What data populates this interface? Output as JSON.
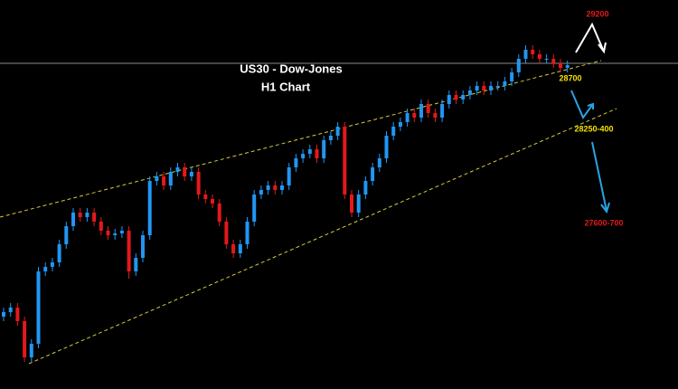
{
  "chart_data": {
    "type": "candlestick",
    "title": "US30 - Dow-Jones",
    "subtitle": "H1 Chart",
    "up_color": "#2196f3",
    "down_color": "#e3191b",
    "ylim": [
      26552,
      29132
    ],
    "open": [
      27032,
      27062,
      27092,
      27002,
      26762,
      26852,
      27332,
      27362,
      27392,
      27512,
      27632,
      27722,
      27692,
      27722,
      27662,
      27602,
      27572,
      27584,
      27602,
      27332,
      27422,
      27572,
      27932,
      27962,
      27902,
      27992,
      28022,
      27962,
      27992,
      27842,
      27812,
      27782,
      27662,
      27512,
      27452,
      27512,
      27662,
      27842,
      27872,
      27902,
      27872,
      27902,
      28022,
      28082,
      28112,
      28142,
      28082,
      28202,
      28232,
      28292,
      27842,
      27722,
      27842,
      27932,
      28022,
      28082,
      28232,
      28292,
      28322,
      28382,
      28352,
      28442,
      28382,
      28352,
      28442,
      28502,
      28472,
      28502,
      28532,
      28562,
      28532,
      28562,
      28562,
      28592,
      28652,
      28742,
      28802,
      28772,
      28742,
      28742,
      28712,
      28682
    ],
    "high": [
      27092,
      27122,
      27122,
      27032,
      26882,
      27362,
      27392,
      27422,
      27542,
      27662,
      27752,
      27752,
      27752,
      27752,
      27692,
      27632,
      27614,
      27632,
      27632,
      27452,
      27602,
      27962,
      27992,
      27992,
      28022,
      28052,
      28052,
      28022,
      28022,
      27872,
      27842,
      27812,
      27692,
      27542,
      27542,
      27692,
      27872,
      27902,
      27932,
      27932,
      27932,
      28052,
      28112,
      28142,
      28172,
      28172,
      28232,
      28262,
      28322,
      28322,
      27872,
      27872,
      27962,
      28052,
      28112,
      28262,
      28322,
      28352,
      28412,
      28412,
      28472,
      28472,
      28412,
      28472,
      28532,
      28532,
      28532,
      28562,
      28592,
      28592,
      28592,
      28592,
      28622,
      28682,
      28772,
      28832,
      28832,
      28802,
      28772,
      28772,
      28742,
      28730
    ],
    "low": [
      27002,
      27032,
      26972,
      26732,
      26732,
      26822,
      27302,
      27332,
      27362,
      27482,
      27602,
      27662,
      27662,
      27632,
      27572,
      27542,
      27542,
      27554,
      27284,
      27302,
      27392,
      27542,
      27902,
      27872,
      27872,
      27962,
      27932,
      27932,
      27812,
      27782,
      27752,
      27632,
      27482,
      27422,
      27422,
      27482,
      27632,
      27812,
      27842,
      27842,
      27842,
      27872,
      27992,
      28052,
      28082,
      28052,
      28052,
      28172,
      28202,
      27812,
      27692,
      27692,
      27812,
      27902,
      27992,
      28052,
      28202,
      28262,
      28292,
      28322,
      28322,
      28352,
      28322,
      28322,
      28412,
      28442,
      28442,
      28472,
      28502,
      28502,
      28502,
      28532,
      28532,
      28562,
      28622,
      28712,
      28742,
      28712,
      28712,
      28682,
      28652,
      28652
    ],
    "close": [
      27062,
      27092,
      27002,
      26762,
      26852,
      27332,
      27362,
      27392,
      27512,
      27632,
      27722,
      27692,
      27722,
      27662,
      27602,
      27572,
      27584,
      27602,
      27332,
      27422,
      27572,
      27932,
      27962,
      27902,
      27992,
      28022,
      27962,
      27992,
      27842,
      27812,
      27782,
      27662,
      27512,
      27452,
      27512,
      27662,
      27842,
      27872,
      27902,
      27872,
      27902,
      28022,
      28082,
      28112,
      28142,
      28082,
      28202,
      28232,
      28292,
      27842,
      27722,
      27842,
      27932,
      28022,
      28082,
      28232,
      28292,
      28322,
      28382,
      28352,
      28442,
      28382,
      28352,
      28442,
      28502,
      28472,
      28502,
      28532,
      28562,
      28532,
      28562,
      28562,
      28592,
      28652,
      28742,
      28802,
      28772,
      28742,
      28742,
      28712,
      28682,
      28700
    ],
    "annotations": [
      {
        "text": "29200",
        "color": "#e3191b"
      },
      {
        "text": "28700",
        "color": "#f5e100"
      },
      {
        "text": "28250-400",
        "color": "#f5e100"
      },
      {
        "text": "27600-700",
        "color": "#e3191b"
      }
    ]
  }
}
